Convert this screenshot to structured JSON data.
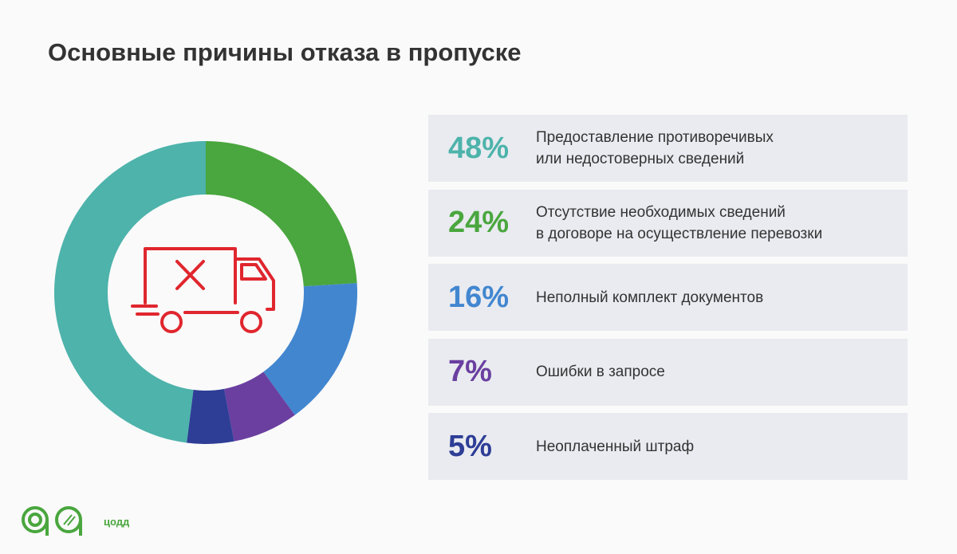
{
  "chart_data": {
    "type": "donut",
    "title": "Основные причины отказа в пропуске",
    "series": [
      {
        "name": "Предоставление противоречивых\nили недостоверных сведений",
        "color": "#4db3ab",
        "values": [
          48
        ],
        "value_labels": [
          "48%"
        ]
      },
      {
        "name": "Отсутствие необходимых сведений\nв договоре на осуществление перевозки",
        "color": "#4aa63e",
        "values": [
          24
        ],
        "value_labels": [
          "24%"
        ]
      },
      {
        "name": "Неполный комплект документов",
        "color": "#4286d0",
        "values": [
          16
        ],
        "value_labels": [
          "16%"
        ]
      },
      {
        "name": "Ошибки в запросе",
        "color": "#6a3fa0",
        "values": [
          7
        ],
        "value_labels": [
          "7%"
        ]
      },
      {
        "name": "Неоплаченный штраф",
        "color": "#2e3e96",
        "values": [
          5
        ],
        "value_labels": [
          "5%"
        ]
      }
    ]
  },
  "logo_text": "цодд"
}
